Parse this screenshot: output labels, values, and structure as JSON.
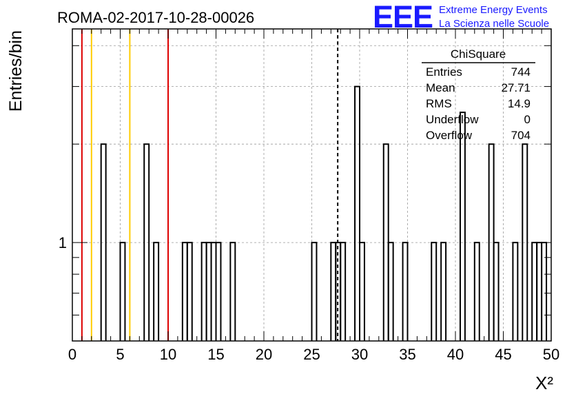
{
  "header": {
    "run_title": "ROMA-02-2017-10-28-00026",
    "logo_text": "EEE",
    "logo_line1": "Extreme Energy Events",
    "logo_line2": "La Scienza nelle Scuole",
    "logo_color": "#1a1aff"
  },
  "stats": {
    "name": "ChiSquare",
    "rows": [
      {
        "label": "Entries",
        "value": "744"
      },
      {
        "label": "Mean",
        "value": "27.71"
      },
      {
        "label": "RMS",
        "value": "14.9"
      },
      {
        "label": "Underflow",
        "value": "0"
      },
      {
        "label": "Overflow",
        "value": "704"
      }
    ]
  },
  "chart_data": {
    "type": "bar",
    "histogram": "step",
    "ylabel": "Entries/bin",
    "xlabel": "X²",
    "xlim": [
      0,
      50
    ],
    "ylog": true,
    "ylim": [
      0.5,
      4.5
    ],
    "x_ticks": [
      "0",
      "5",
      "10",
      "15",
      "20",
      "25",
      "30",
      "35",
      "40",
      "45",
      "50"
    ],
    "y_tick_labels": [
      {
        "value": 1,
        "label": "1"
      }
    ],
    "grid": true,
    "bin_width": 0.5,
    "bins": [
      [
        3.0,
        2
      ],
      [
        5.0,
        1
      ],
      [
        7.5,
        2
      ],
      [
        8.5,
        1
      ],
      [
        11.5,
        1
      ],
      [
        12.0,
        1
      ],
      [
        13.5,
        1
      ],
      [
        14.0,
        1
      ],
      [
        14.5,
        1
      ],
      [
        15.0,
        1
      ],
      [
        16.5,
        1
      ],
      [
        25.0,
        1
      ],
      [
        27.0,
        1
      ],
      [
        27.5,
        1
      ],
      [
        28.0,
        1
      ],
      [
        29.5,
        3
      ],
      [
        30.0,
        1
      ],
      [
        32.5,
        2
      ],
      [
        33.0,
        1
      ],
      [
        34.5,
        1
      ],
      [
        37.5,
        1
      ],
      [
        38.5,
        1
      ],
      [
        40.5,
        2.5
      ],
      [
        42.0,
        1
      ],
      [
        43.5,
        2
      ],
      [
        44.0,
        1
      ],
      [
        46.0,
        1
      ],
      [
        47.0,
        2
      ],
      [
        48.0,
        1
      ],
      [
        48.5,
        1
      ],
      [
        49.0,
        1
      ]
    ],
    "vertical_lines": [
      {
        "x": 1.0,
        "color": "#dd0000",
        "style": "solid"
      },
      {
        "x": 2.0,
        "color": "#ffcc00",
        "style": "solid"
      },
      {
        "x": 6.0,
        "color": "#ffcc00",
        "style": "solid"
      },
      {
        "x": 10.0,
        "color": "#dd0000",
        "style": "solid"
      },
      {
        "x": 27.71,
        "color": "#000000",
        "style": "dashed"
      }
    ]
  }
}
